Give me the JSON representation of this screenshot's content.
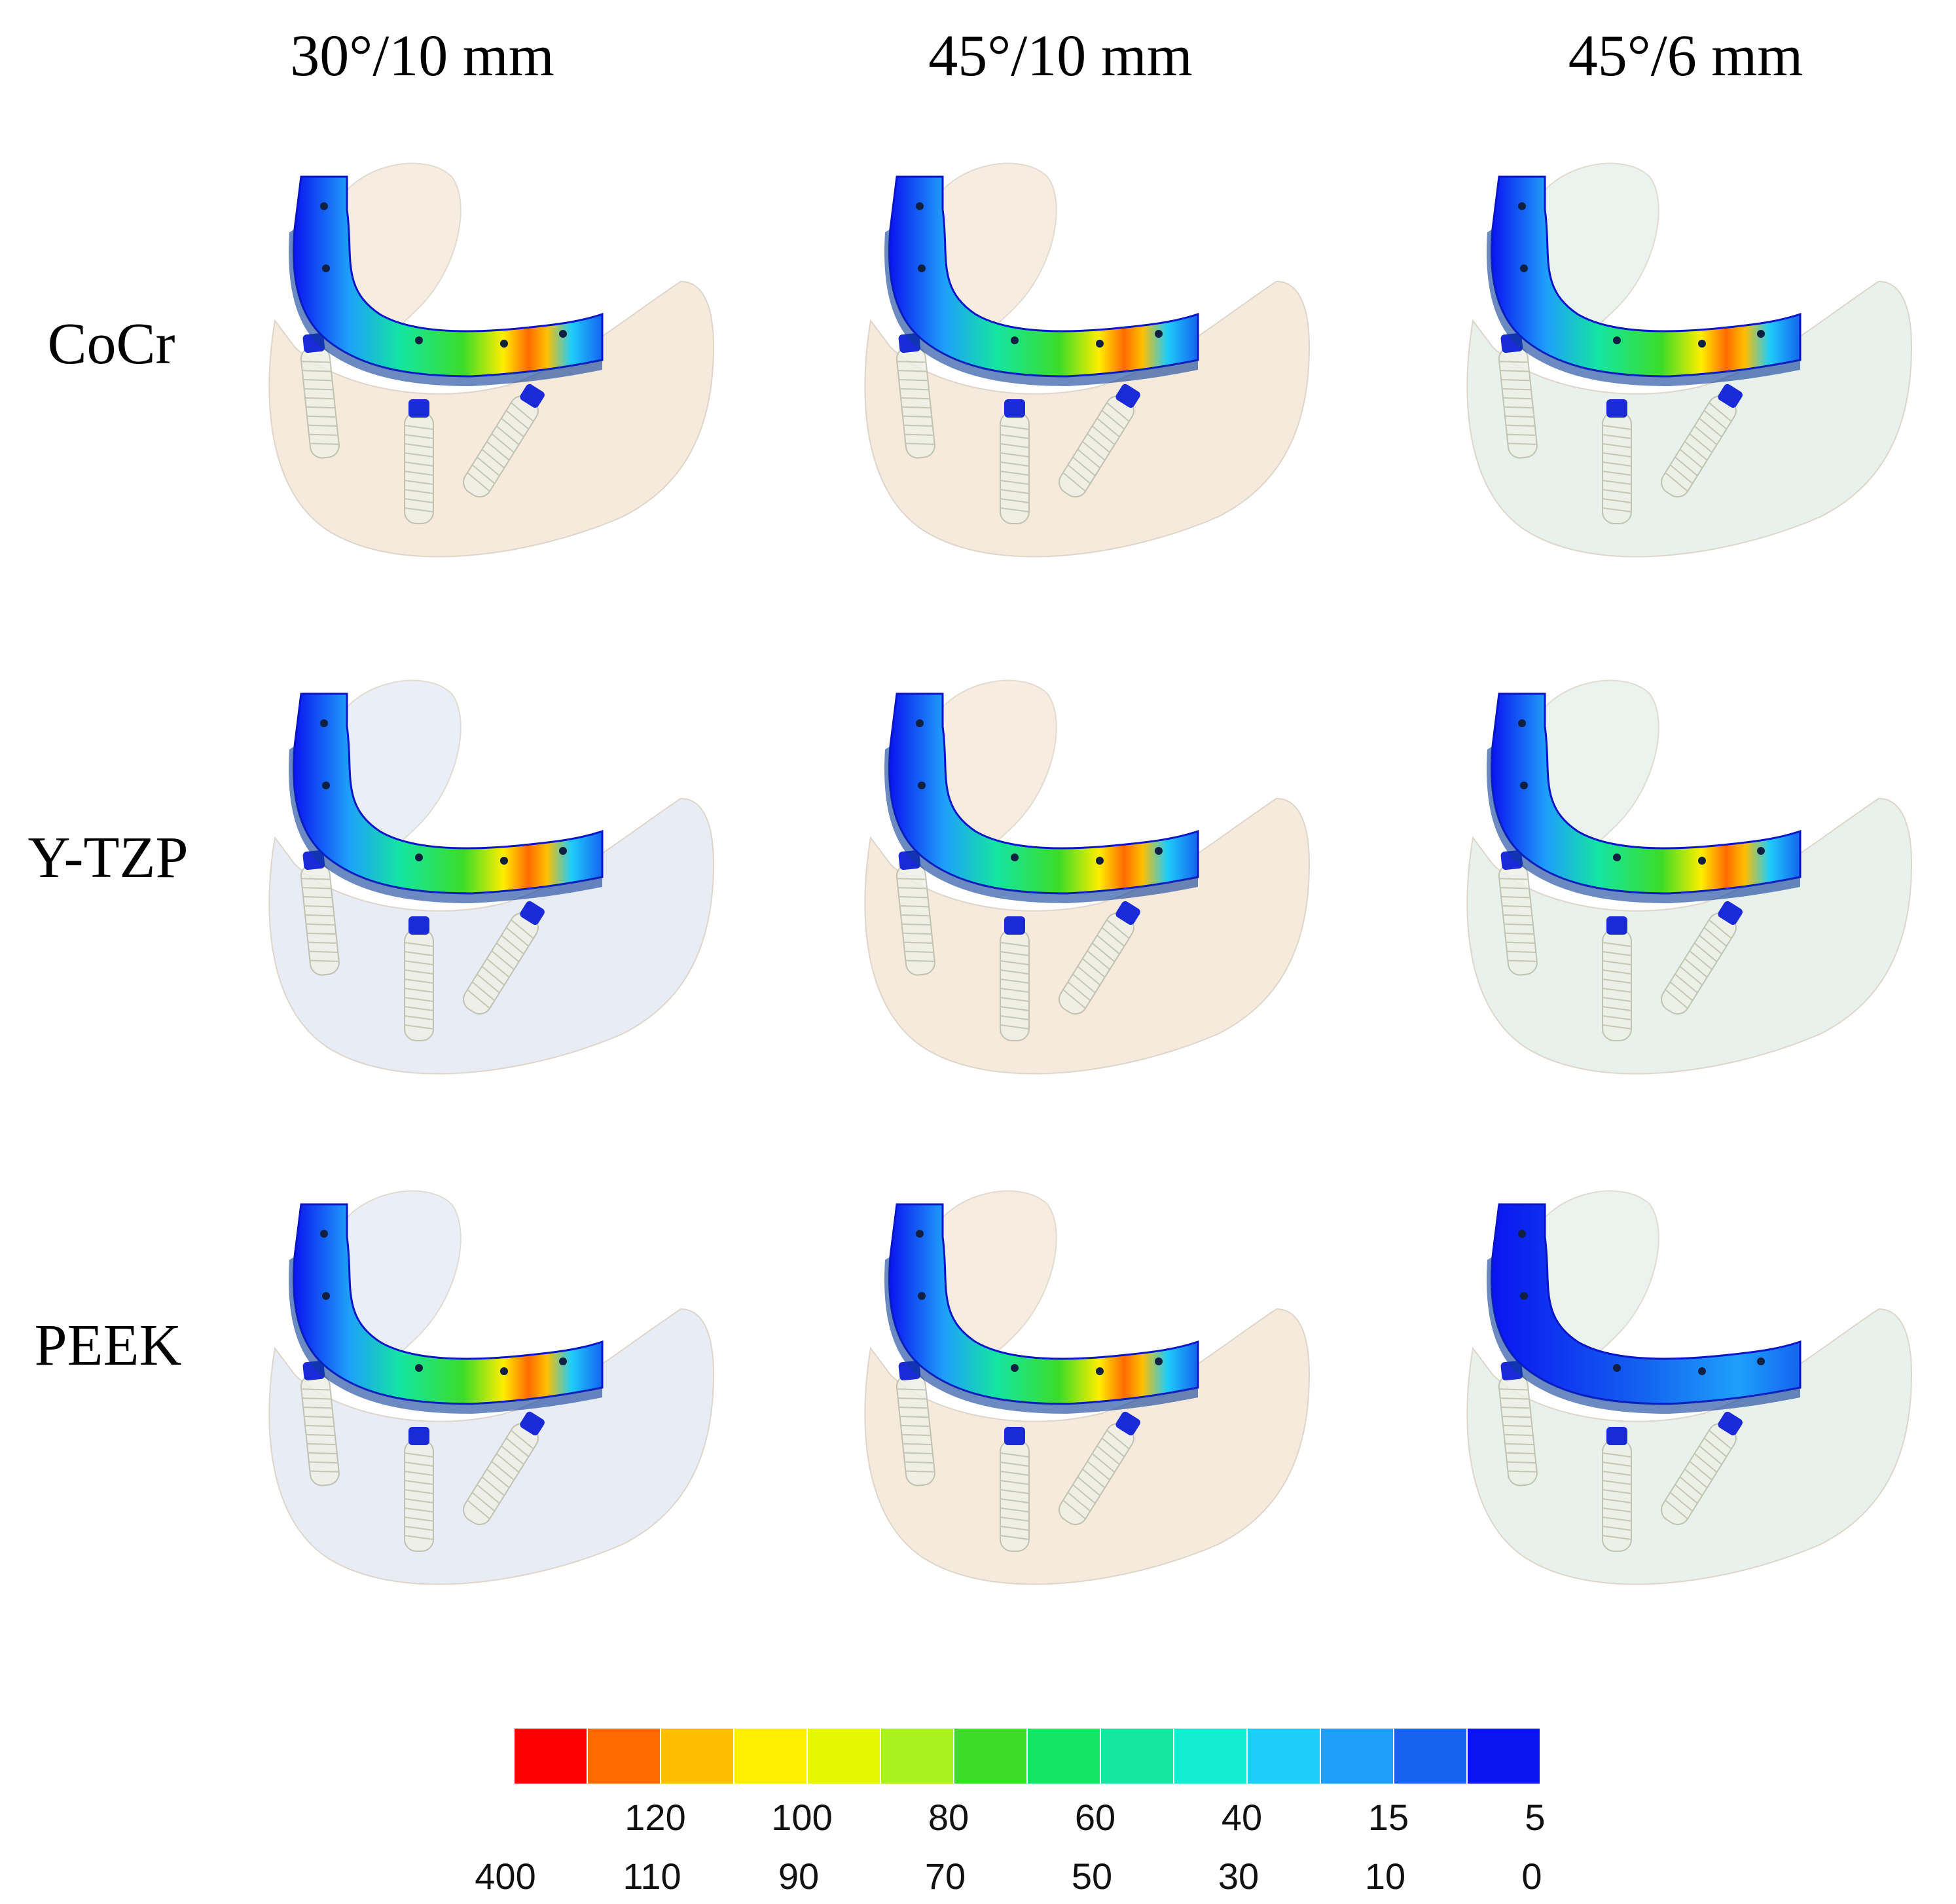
{
  "columns": [
    {
      "label": "30°/10 mm"
    },
    {
      "label": "45°/10 mm"
    },
    {
      "label": "45°/6 mm"
    }
  ],
  "rows": [
    {
      "label": "CoCr"
    },
    {
      "label": "Y-TZP"
    },
    {
      "label": "PEEK"
    }
  ],
  "panels": [
    [
      "#f4e7d6",
      "#f4e7d6",
      "#e4efe9"
    ],
    [
      "#e4e9f4",
      "#f4e7d6",
      "#e4efe9"
    ],
    [
      "#e4e9f4",
      "#f4e7d6",
      "#e4efe9"
    ]
  ],
  "panel_stress_level": [
    [
      1.0,
      0.95,
      0.55
    ],
    [
      0.95,
      0.9,
      0.55
    ],
    [
      0.7,
      0.65,
      0.35
    ]
  ],
  "legend": {
    "colors": [
      "#ff0000",
      "#ff6a00",
      "#ffbf00",
      "#ffee00",
      "#e6f500",
      "#a8f01e",
      "#3cdc28",
      "#14e664",
      "#14e6a0",
      "#14ecd2",
      "#1ecdfa",
      "#1ea0fa",
      "#1464f0",
      "#0a14f0"
    ],
    "upper_ticks": [
      "120",
      "100",
      "80",
      "60",
      "40",
      "15",
      "5"
    ],
    "lower_ticks": [
      "400",
      "110",
      "90",
      "70",
      "50",
      "30",
      "10",
      "0"
    ]
  }
}
